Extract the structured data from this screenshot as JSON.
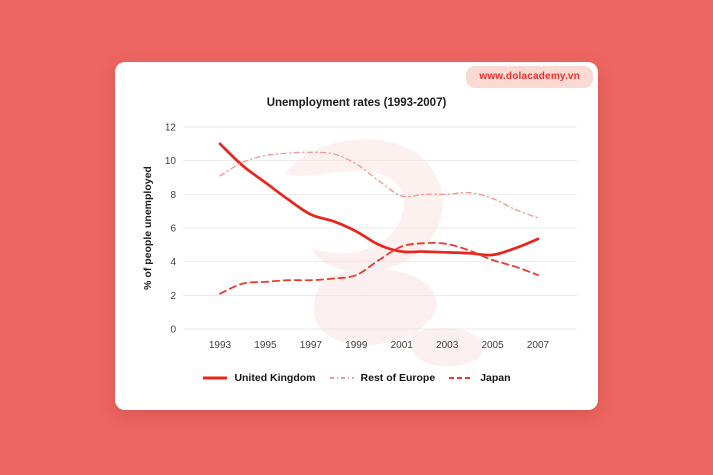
{
  "badge": {
    "text": "www.dolacademy.vn"
  },
  "colors": {
    "background": "#EE6661",
    "card": "#FFFFFF",
    "badge_bg": "#FBDAD4",
    "badge_text": "#E8302A",
    "grid": "#E9E9E9",
    "tick_text": "#3D3D3D",
    "title_text": "#1C1C1C",
    "logo_watermark": "#F8E0DC"
  },
  "chart_data": {
    "type": "line",
    "title": "Unemployment rates (1993-2007)",
    "xlabel": "",
    "ylabel": "% of people unemployed",
    "xlim": [
      1993,
      2007
    ],
    "ylim": [
      0,
      12
    ],
    "x_ticks": [
      1993,
      1995,
      1997,
      1999,
      2001,
      2003,
      2005,
      2007
    ],
    "y_ticks": [
      0,
      2,
      4,
      6,
      8,
      10,
      12
    ],
    "grid": "horizontal-only",
    "legend_position": "bottom-center",
    "x": [
      1993,
      1994,
      1995,
      1996,
      1997,
      1998,
      1999,
      2000,
      2001,
      2002,
      2003,
      2004,
      2005,
      2006,
      2007
    ],
    "series": [
      {
        "name": "United Kingdom",
        "style": "solid",
        "color": "#E8251D",
        "width": 2.7,
        "values": [
          11.0,
          9.7,
          8.7,
          7.7,
          6.8,
          6.4,
          5.8,
          5.0,
          4.6,
          4.6,
          4.55,
          4.5,
          4.4,
          4.8,
          5.35
        ]
      },
      {
        "name": "Rest of Europe",
        "style": "dashdot",
        "color": "#F2978E",
        "width": 1.3,
        "values": [
          9.1,
          9.9,
          10.3,
          10.45,
          10.5,
          10.4,
          9.8,
          8.8,
          7.9,
          8.0,
          8.0,
          8.1,
          7.75,
          7.1,
          6.6
        ]
      },
      {
        "name": "Japan",
        "style": "dashed",
        "color": "#EA3B30",
        "width": 1.8,
        "values": [
          2.1,
          2.7,
          2.8,
          2.9,
          2.9,
          3.0,
          3.2,
          4.1,
          4.9,
          5.1,
          5.05,
          4.65,
          4.1,
          3.7,
          3.2
        ]
      }
    ]
  }
}
